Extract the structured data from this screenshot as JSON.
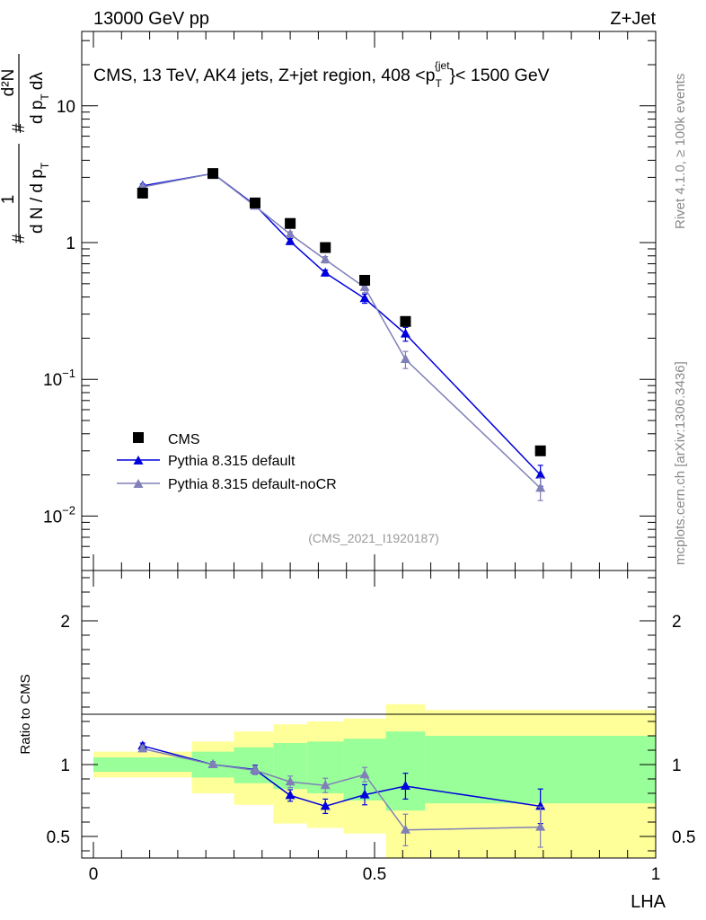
{
  "header": {
    "left": "13000 GeV pp",
    "right": "Z+Jet"
  },
  "side_text": {
    "rivet": "Rivet 4.1.0, ≥ 100k events",
    "mcplots": "mcplots.cern.ch [arXiv:1306.3436]"
  },
  "colors": {
    "cms": "#000000",
    "default": "#0000dd",
    "noCR": "#8080b8",
    "band_inner": "#99ff99",
    "band_outer": "#ffff99"
  },
  "chart_data": [
    {
      "type": "line",
      "panel": "main",
      "title": "CMS, 13 TeV, AK4 jets, Z+jet region, 408 <p_T^{jet}< 1500 GeV",
      "title_parts": {
        "pre": "CMS, 13 TeV, AK4 jets, Z+jet region, 408 <p",
        "sub": "T",
        "sup": "{jet",
        "post": "}< 1500 GeV"
      },
      "ylabel": "1/(dN/dp_T) d²N/(dp_T dλ)",
      "ylabel_parts": {
        "numer1": "1",
        "denom1": "d N / d p",
        "numer2": "d²N",
        "denom2": "d p",
        "lambda": "dλ",
        "sub": "T",
        "hash": "#"
      },
      "yscale": "log",
      "ylim": [
        0.004,
        35
      ],
      "xlim": [
        0,
        1
      ],
      "y_ticks": [
        {
          "value": 10,
          "base": "10",
          "exp": ""
        },
        {
          "value": 1,
          "base": "1",
          "exp": ""
        },
        {
          "value": 0.1,
          "base": "10",
          "exp": "−1"
        },
        {
          "value": 0.01,
          "base": "10",
          "exp": "−2"
        }
      ],
      "watermark": "(CMS_2021_I1920187)",
      "legend_position": "bottom-left",
      "series": [
        {
          "name": "CMS",
          "marker": "square",
          "x": [
            0.0875,
            0.2125,
            0.2875,
            0.35,
            0.4125,
            0.4825,
            0.555,
            0.795
          ],
          "y": [
            2.3,
            3.2,
            1.95,
            1.38,
            0.92,
            0.53,
            0.265,
            0.03
          ]
        },
        {
          "name": "Pythia 8.315 default",
          "marker": "triangle",
          "x": [
            0.0875,
            0.2125,
            0.2875,
            0.35,
            0.4125,
            0.4825,
            0.555,
            0.795
          ],
          "y": [
            2.6,
            3.2,
            1.88,
            1.02,
            0.6,
            0.39,
            0.215,
            0.02
          ],
          "err": [
            0.08,
            0.08,
            0.06,
            0.05,
            0.03,
            0.03,
            0.025,
            0.0035
          ]
        },
        {
          "name": "Pythia 8.315 default-noCR",
          "marker": "triangle",
          "x": [
            0.0875,
            0.2125,
            0.2875,
            0.35,
            0.4125,
            0.4825,
            0.555,
            0.795
          ],
          "y": [
            2.55,
            3.2,
            1.85,
            1.15,
            0.75,
            0.47,
            0.14,
            0.016
          ],
          "err": [
            0.08,
            0.08,
            0.06,
            0.05,
            0.04,
            0.04,
            0.02,
            0.003
          ]
        }
      ]
    },
    {
      "type": "line",
      "panel": "ratio",
      "xlabel": "LHA",
      "ylabel": "Ratio to CMS",
      "ylim": [
        0.35,
        2.35
      ],
      "xlim": [
        0,
        1
      ],
      "y_ticks": [
        0.5,
        1,
        2
      ],
      "y_tick_labels": [
        "0.5",
        "1",
        "2"
      ],
      "x_ticks": [
        0,
        0.5,
        1
      ],
      "x_tick_labels": [
        "0",
        "0.5",
        "1"
      ],
      "bins": [
        0,
        0.175,
        0.25,
        0.32,
        0.38,
        0.445,
        0.52,
        0.59,
        1.0
      ],
      "band_inner": [
        [
          0.95,
          1.05
        ],
        [
          0.91,
          1.09
        ],
        [
          0.87,
          1.12
        ],
        [
          0.83,
          1.15
        ],
        [
          0.8,
          1.16
        ],
        [
          0.75,
          1.18
        ],
        [
          0.68,
          1.23
        ],
        [
          0.73,
          1.2
        ]
      ],
      "band_outer": [
        [
          0.91,
          1.09
        ],
        [
          0.8,
          1.16
        ],
        [
          0.72,
          1.23
        ],
        [
          0.59,
          1.28
        ],
        [
          0.56,
          1.3
        ],
        [
          0.52,
          1.32
        ],
        [
          0.35,
          1.42
        ],
        [
          0.35,
          1.38
        ]
      ],
      "series": [
        {
          "name": "Pythia 8.315 default",
          "x": [
            0.0875,
            0.2125,
            0.2875,
            0.35,
            0.4125,
            0.4825,
            0.555,
            0.795
          ],
          "y": [
            1.13,
            1.0,
            0.965,
            0.785,
            0.71,
            0.79,
            0.85,
            0.71
          ],
          "err": [
            0.02,
            0.02,
            0.03,
            0.04,
            0.05,
            0.07,
            0.09,
            0.12
          ]
        },
        {
          "name": "Pythia 8.315 default-noCR",
          "x": [
            0.0875,
            0.2125,
            0.2875,
            0.35,
            0.4125,
            0.4825,
            0.555,
            0.795
          ],
          "y": [
            1.11,
            1.0,
            0.96,
            0.88,
            0.855,
            0.93,
            0.545,
            0.565
          ],
          "err": [
            0.02,
            0.02,
            0.03,
            0.04,
            0.05,
            0.05,
            0.11,
            0.14
          ]
        }
      ]
    }
  ]
}
